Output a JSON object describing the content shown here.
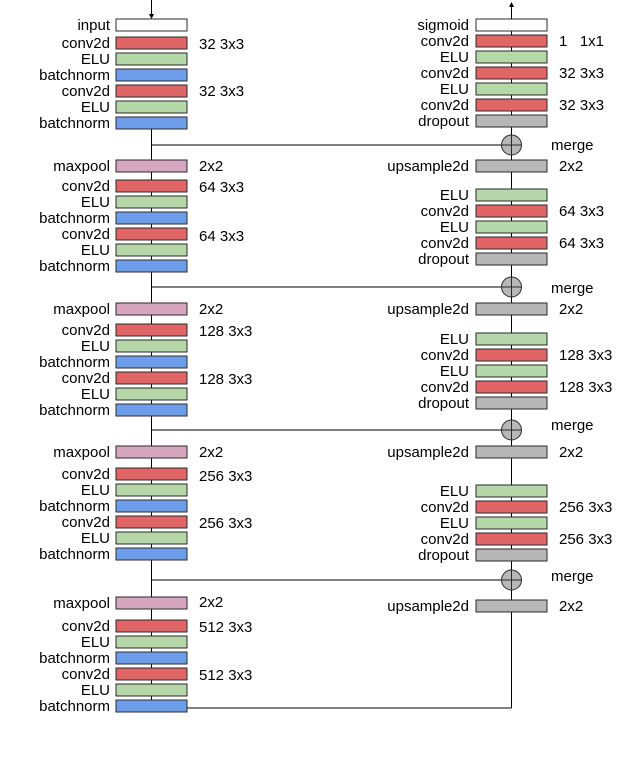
{
  "colors": {
    "input": "#ffffff",
    "sigmoid": "#ffffff",
    "conv2d": "#e06666",
    "ELU": "#b6d7a8",
    "batchnorm": "#6d9eeb",
    "maxpool": "#d5a6bd",
    "upsample2d": "#b7b7b7",
    "dropout": "#b7b7b7",
    "merge": "#b7b7b7"
  },
  "left": [
    {
      "label": "input",
      "type": "input"
    },
    {
      "label": "conv2d",
      "type": "conv2d",
      "note": "32 3x3"
    },
    {
      "label": "ELU",
      "type": "ELU"
    },
    {
      "label": "batchnorm",
      "type": "batchnorm"
    },
    {
      "label": "conv2d",
      "type": "conv2d",
      "note": "32 3x3"
    },
    {
      "label": "ELU",
      "type": "ELU"
    },
    {
      "label": "batchnorm",
      "type": "batchnorm"
    },
    {
      "label": "maxpool",
      "type": "maxpool",
      "note": "2x2"
    },
    {
      "label": "conv2d",
      "type": "conv2d",
      "note": "64 3x3"
    },
    {
      "label": "ELU",
      "type": "ELU"
    },
    {
      "label": "batchnorm",
      "type": "batchnorm"
    },
    {
      "label": "conv2d",
      "type": "conv2d",
      "note": "64 3x3"
    },
    {
      "label": "ELU",
      "type": "ELU"
    },
    {
      "label": "batchnorm",
      "type": "batchnorm"
    },
    {
      "label": "maxpool",
      "type": "maxpool",
      "note": "2x2"
    },
    {
      "label": "conv2d",
      "type": "conv2d",
      "note": "128 3x3"
    },
    {
      "label": "ELU",
      "type": "ELU"
    },
    {
      "label": "batchnorm",
      "type": "batchnorm"
    },
    {
      "label": "conv2d",
      "type": "conv2d",
      "note": "128 3x3"
    },
    {
      "label": "ELU",
      "type": "ELU"
    },
    {
      "label": "batchnorm",
      "type": "batchnorm"
    },
    {
      "label": "maxpool",
      "type": "maxpool",
      "note": "2x2"
    },
    {
      "label": "conv2d",
      "type": "conv2d",
      "note": "256 3x3"
    },
    {
      "label": "ELU",
      "type": "ELU"
    },
    {
      "label": "batchnorm",
      "type": "batchnorm"
    },
    {
      "label": "conv2d",
      "type": "conv2d",
      "note": "256 3x3"
    },
    {
      "label": "ELU",
      "type": "ELU"
    },
    {
      "label": "batchnorm",
      "type": "batchnorm"
    },
    {
      "label": "maxpool",
      "type": "maxpool",
      "note": "2x2"
    },
    {
      "label": "conv2d",
      "type": "conv2d",
      "note": "512 3x3"
    },
    {
      "label": "ELU",
      "type": "ELU"
    },
    {
      "label": "batchnorm",
      "type": "batchnorm"
    },
    {
      "label": "conv2d",
      "type": "conv2d",
      "note": "512 3x3"
    },
    {
      "label": "ELU",
      "type": "ELU"
    },
    {
      "label": "batchnorm",
      "type": "batchnorm"
    }
  ],
  "right": [
    {
      "label": "sigmoid",
      "type": "sigmoid"
    },
    {
      "label": "conv2d",
      "type": "conv2d",
      "note": "1   1x1"
    },
    {
      "label": "ELU",
      "type": "ELU"
    },
    {
      "label": "conv2d",
      "type": "conv2d",
      "note": "32 3x3"
    },
    {
      "label": "ELU",
      "type": "ELU"
    },
    {
      "label": "conv2d",
      "type": "conv2d",
      "note": "32 3x3"
    },
    {
      "label": "dropout",
      "type": "dropout"
    },
    {
      "label": "upsample2d",
      "type": "upsample2d",
      "note": "2x2"
    },
    {
      "label": "ELU",
      "type": "ELU"
    },
    {
      "label": "conv2d",
      "type": "conv2d",
      "note": "64 3x3"
    },
    {
      "label": "ELU",
      "type": "ELU"
    },
    {
      "label": "conv2d",
      "type": "conv2d",
      "note": "64 3x3"
    },
    {
      "label": "dropout",
      "type": "dropout"
    },
    {
      "label": "upsample2d",
      "type": "upsample2d",
      "note": "2x2"
    },
    {
      "label": "ELU",
      "type": "ELU"
    },
    {
      "label": "conv2d",
      "type": "conv2d",
      "note": "128 3x3"
    },
    {
      "label": "ELU",
      "type": "ELU"
    },
    {
      "label": "conv2d",
      "type": "conv2d",
      "note": "128 3x3"
    },
    {
      "label": "dropout",
      "type": "dropout"
    },
    {
      "label": "upsample2d",
      "type": "upsample2d",
      "note": "2x2"
    },
    {
      "label": "ELU",
      "type": "ELU"
    },
    {
      "label": "conv2d",
      "type": "conv2d",
      "note": "256 3x3"
    },
    {
      "label": "ELU",
      "type": "ELU"
    },
    {
      "label": "conv2d",
      "type": "conv2d",
      "note": "256 3x3"
    },
    {
      "label": "dropout",
      "type": "dropout"
    },
    {
      "label": "upsample2d",
      "type": "upsample2d",
      "note": "2x2"
    }
  ],
  "merges": [
    {
      "label": "merge"
    },
    {
      "label": "merge"
    },
    {
      "label": "merge"
    },
    {
      "label": "merge"
    }
  ]
}
